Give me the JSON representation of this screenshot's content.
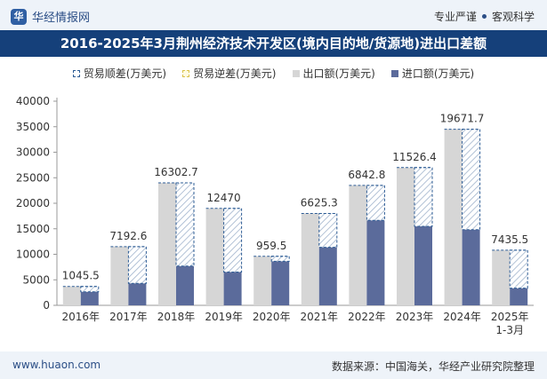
{
  "header": {
    "brand_logo": "华",
    "brand_name": "华经情报网",
    "tagline_left": "专业严谨",
    "tagline_right": "客观科学"
  },
  "title": "2016-2025年3月荆州经济技术开发区(境内目的地/货源地)进出口差额",
  "legend": {
    "trade_surplus": "贸易顺差(万美元)",
    "trade_deficit": "贸易逆差(万美元)",
    "export": "出口额(万美元)",
    "import": "进口额(万美元)"
  },
  "footer": {
    "url": "www.huaon.com",
    "source": "数据来源：中国海关，华经产业研究院整理"
  },
  "colors": {
    "export": "#d6d6d6",
    "import": "#5b6b9b",
    "surplus_border": "#2d5c95",
    "title_bg": "#15407a"
  },
  "chart_data": {
    "type": "bar",
    "categories": [
      "2016年",
      "2017年",
      "2018年",
      "2019年",
      "2020年",
      "2021年",
      "2022年",
      "2023年",
      "2024年",
      "2025年\n1-3月"
    ],
    "series": [
      {
        "name": "出口额(万美元)",
        "values": [
          3700,
          11500,
          24000,
          19000,
          9600,
          18000,
          23500,
          27000,
          34500,
          10800
        ]
      },
      {
        "name": "进口额(万美元)",
        "values": [
          2654.5,
          4307.4,
          7697.3,
          6530,
          8640.5,
          11374.7,
          16657.2,
          15473.6,
          14828.3,
          3364.5
        ]
      },
      {
        "name": "贸易顺差(万美元)",
        "values": [
          1045.5,
          7192.6,
          16302.7,
          12470,
          959.5,
          6625.3,
          6842.8,
          11526.4,
          19671.7,
          7435.5
        ]
      }
    ],
    "ylim": [
      0,
      40000
    ],
    "yticks": [
      0,
      5000,
      10000,
      15000,
      20000,
      25000,
      30000,
      35000,
      40000
    ],
    "legend_position": "top"
  }
}
